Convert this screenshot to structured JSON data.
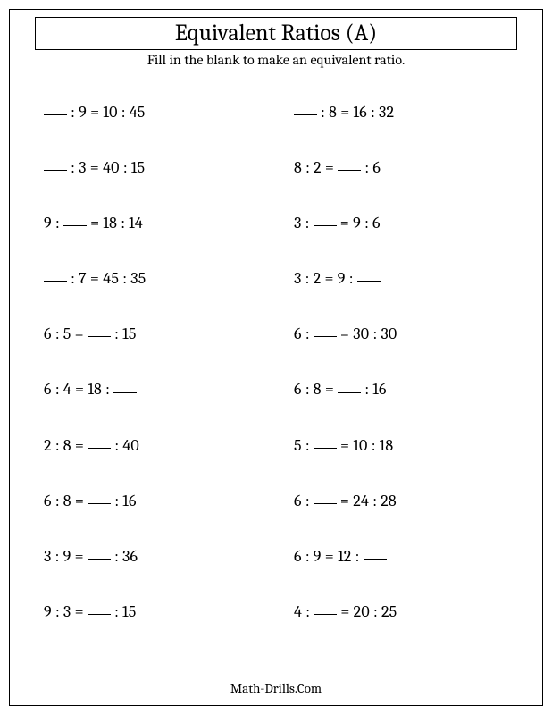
{
  "title": "Equivalent Ratios (A)",
  "subtitle": "Fill in the blank to make an equivalent ratio.",
  "footer": "Math-Drills.Com",
  "problems": {
    "left": [
      {
        "a": "_",
        "b": "9",
        "c": "10",
        "d": "45"
      },
      {
        "a": "_",
        "b": "3",
        "c": "40",
        "d": "15"
      },
      {
        "a": "9",
        "b": "_",
        "c": "18",
        "d": "14"
      },
      {
        "a": "_",
        "b": "7",
        "c": "45",
        "d": "35"
      },
      {
        "a": "6",
        "b": "5",
        "c": "_",
        "d": "15"
      },
      {
        "a": "6",
        "b": "4",
        "c": "18",
        "d": "_"
      },
      {
        "a": "2",
        "b": "8",
        "c": "_",
        "d": "40"
      },
      {
        "a": "6",
        "b": "8",
        "c": "_",
        "d": "16"
      },
      {
        "a": "3",
        "b": "9",
        "c": "_",
        "d": "36"
      },
      {
        "a": "9",
        "b": "3",
        "c": "_",
        "d": "15"
      }
    ],
    "right": [
      {
        "a": "_",
        "b": "8",
        "c": "16",
        "d": "32"
      },
      {
        "a": "8",
        "b": "2",
        "c": "_",
        "d": "6"
      },
      {
        "a": "3",
        "b": "_",
        "c": "9",
        "d": "6"
      },
      {
        "a": "3",
        "b": "2",
        "c": "9",
        "d": "_"
      },
      {
        "a": "6",
        "b": "_",
        "c": "30",
        "d": "30"
      },
      {
        "a": "6",
        "b": "8",
        "c": "_",
        "d": "16"
      },
      {
        "a": "5",
        "b": "_",
        "c": "10",
        "d": "18"
      },
      {
        "a": "6",
        "b": "_",
        "c": "24",
        "d": "28"
      },
      {
        "a": "6",
        "b": "9",
        "c": "12",
        "d": "_"
      },
      {
        "a": "4",
        "b": "_",
        "c": "20",
        "d": "25"
      }
    ]
  }
}
